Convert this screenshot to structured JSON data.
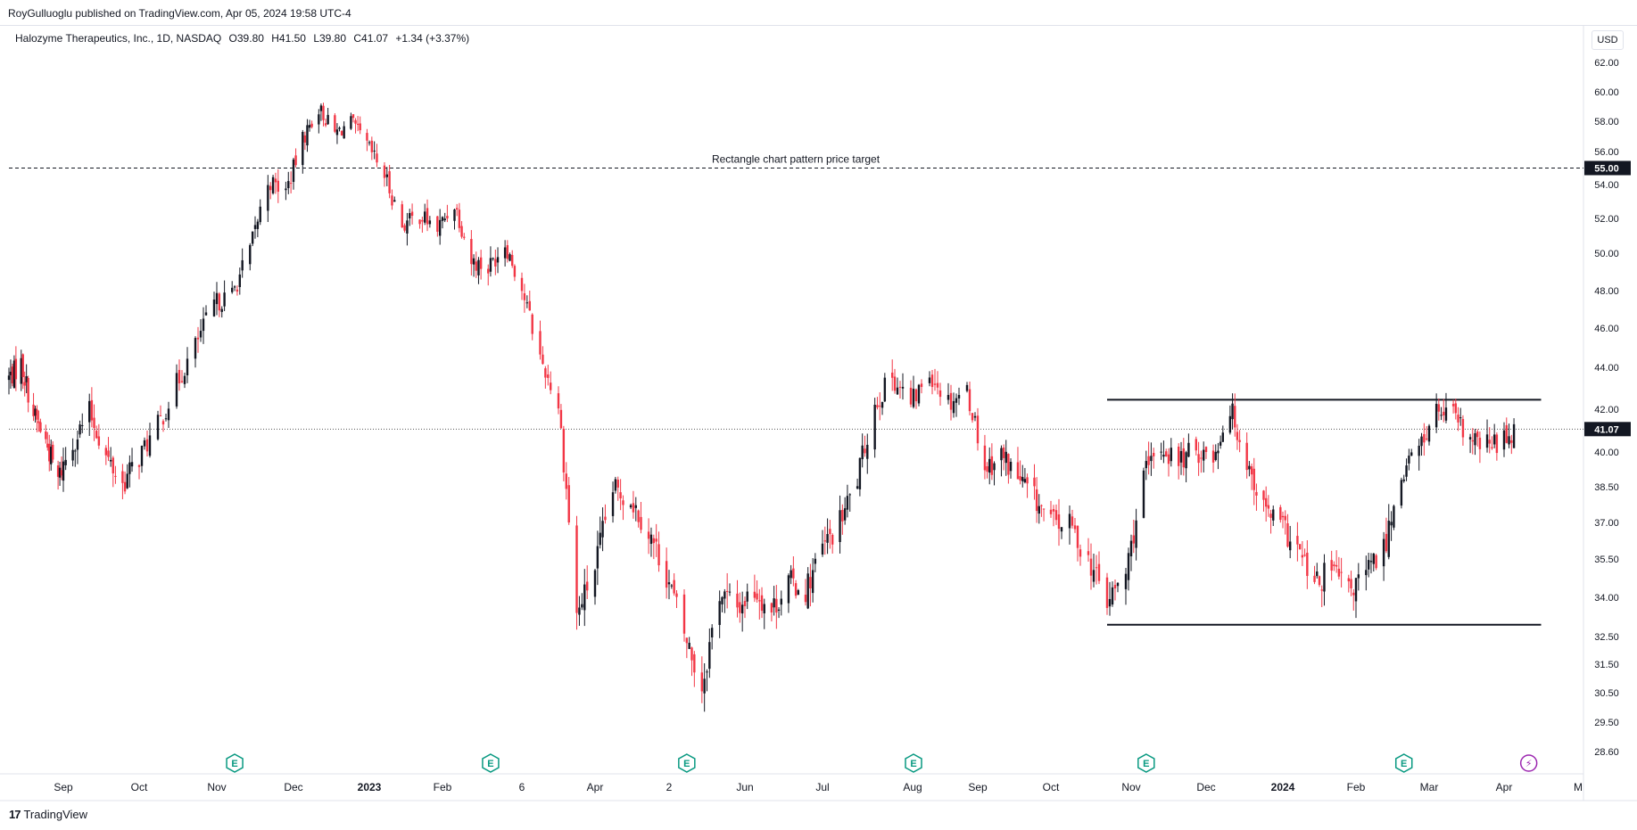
{
  "header": {
    "publisher": "RoyGulluoglu published on TradingView.com, Apr 05, 2024 19:58 UTC-4"
  },
  "legend": {
    "symbol": "Halozyme Therapeutics, Inc., 1D, NASDAQ",
    "open": "O39.80",
    "high": "H41.50",
    "low": "L39.80",
    "close": "C41.07",
    "change": "+1.34 (+3.37%)"
  },
  "currency": "USD",
  "footer": {
    "brand": "TradingView",
    "logo_mark": "17"
  },
  "colors": {
    "up": "#131722",
    "down": "#f23645",
    "line": "#131722",
    "event_icon": "#089981",
    "flash_icon": "#9c27b0",
    "grid": "#e0e3eb"
  },
  "chart_data": {
    "type": "candlestick",
    "title": "",
    "xlabel": "",
    "ylabel": "",
    "ylim": [
      28.0,
      63.2
    ],
    "y_ticks": [
      "62.00",
      "60.00",
      "58.00",
      "56.00",
      "54.00",
      "52.00",
      "50.00",
      "48.00",
      "46.00",
      "44.00",
      "42.00",
      "40.00",
      "38.50",
      "37.00",
      "35.50",
      "34.00",
      "32.50",
      "31.50",
      "30.50",
      "29.50",
      "28.60"
    ],
    "x_ticks": [
      "Sep",
      "Oct",
      "Nov",
      "Dec",
      "2023",
      "Feb",
      "6",
      "Apr",
      "2",
      "Jun",
      "Jul",
      "Aug",
      "Sep",
      "Oct",
      "Nov",
      "Dec",
      "2024",
      "Feb",
      "Mar",
      "Apr",
      "M"
    ],
    "x_ticks_bold": [
      "2023",
      "2024"
    ],
    "last_price": 41.07,
    "price_labels": [
      {
        "value": 55.0,
        "text": "55.00",
        "style": "dark"
      },
      {
        "value": 41.07,
        "text": "41.07",
        "style": "dark"
      }
    ],
    "annotations": [
      {
        "type": "hline",
        "value": 55.0,
        "style": "dashed",
        "label": "Rectangle chart pattern price target",
        "date_range": [
          "2022-08-01",
          "2024-05-31"
        ]
      },
      {
        "type": "segment",
        "value": 42.45,
        "style": "solid",
        "date_range": [
          "2023-10-23",
          "2024-04-16"
        ]
      },
      {
        "type": "segment",
        "value": 32.95,
        "style": "solid",
        "date_range": [
          "2023-10-23",
          "2024-04-16"
        ]
      },
      {
        "type": "hline",
        "value": 41.07,
        "style": "dotted",
        "date_range": [
          "2022-08-01",
          "2024-05-31"
        ]
      }
    ],
    "events": [
      {
        "date": "2022-11-08",
        "type": "earnings",
        "label": "E"
      },
      {
        "date": "2023-02-21",
        "type": "earnings",
        "label": "E"
      },
      {
        "date": "2023-05-09",
        "type": "earnings",
        "label": "E"
      },
      {
        "date": "2023-08-08",
        "type": "earnings",
        "label": "E"
      },
      {
        "date": "2023-11-07",
        "type": "earnings",
        "label": "E"
      },
      {
        "date": "2024-02-20",
        "type": "earnings",
        "label": "E"
      },
      {
        "date": "2024-04-11",
        "type": "dividend-split",
        "label": "⚡"
      }
    ],
    "series": [
      {
        "name": "",
        "points": [
          [
            "2022-08-01",
            43.5
          ],
          [
            "2022-08-08",
            44.2
          ],
          [
            "2022-08-15",
            41.8
          ],
          [
            "2022-08-22",
            40.5
          ],
          [
            "2022-08-29",
            38.8
          ],
          [
            "2022-09-05",
            40.4
          ],
          [
            "2022-09-12",
            41.9
          ],
          [
            "2022-09-19",
            39.8
          ],
          [
            "2022-09-26",
            38.6
          ],
          [
            "2022-10-03",
            39.8
          ],
          [
            "2022-10-10",
            41.2
          ],
          [
            "2022-10-17",
            43.2
          ],
          [
            "2022-10-24",
            45.1
          ],
          [
            "2022-10-31",
            47.3
          ],
          [
            "2022-11-07",
            47.8
          ],
          [
            "2022-11-14",
            50.2
          ],
          [
            "2022-11-21",
            54.2
          ],
          [
            "2022-11-28",
            53.6
          ],
          [
            "2022-12-05",
            56.8
          ],
          [
            "2022-12-12",
            58.9
          ],
          [
            "2022-12-19",
            57.2
          ],
          [
            "2022-12-26",
            57.9
          ],
          [
            "2023-01-02",
            56.4
          ],
          [
            "2023-01-09",
            54.6
          ],
          [
            "2023-01-16",
            51.6
          ],
          [
            "2023-01-23",
            52.2
          ],
          [
            "2023-01-30",
            51.4
          ],
          [
            "2023-02-06",
            52.9
          ],
          [
            "2023-02-13",
            49.6
          ],
          [
            "2023-02-20",
            49.2
          ],
          [
            "2023-02-27",
            50.6
          ],
          [
            "2023-03-06",
            48.1
          ],
          [
            "2023-03-13",
            44.5
          ],
          [
            "2023-03-20",
            42.2
          ],
          [
            "2023-03-27",
            33.3
          ],
          [
            "2023-04-03",
            35.2
          ],
          [
            "2023-04-10",
            38.4
          ],
          [
            "2023-04-17",
            38.0
          ],
          [
            "2023-04-24",
            36.6
          ],
          [
            "2023-05-01",
            34.9
          ],
          [
            "2023-05-08",
            32.6
          ],
          [
            "2023-05-15",
            30.7
          ],
          [
            "2023-05-22",
            34.2
          ],
          [
            "2023-05-29",
            33.6
          ],
          [
            "2023-06-05",
            34.3
          ],
          [
            "2023-06-12",
            33.5
          ],
          [
            "2023-06-19",
            34.6
          ],
          [
            "2023-06-26",
            34.3
          ],
          [
            "2023-07-03",
            35.9
          ],
          [
            "2023-07-10",
            37.0
          ],
          [
            "2023-07-17",
            38.8
          ],
          [
            "2023-07-24",
            42.2
          ],
          [
            "2023-07-31",
            43.6
          ],
          [
            "2023-08-07",
            42.2
          ],
          [
            "2023-08-14",
            43.8
          ],
          [
            "2023-08-21",
            42.4
          ],
          [
            "2023-08-28",
            42.9
          ],
          [
            "2023-09-04",
            39.3
          ],
          [
            "2023-09-11",
            39.9
          ],
          [
            "2023-09-18",
            38.9
          ],
          [
            "2023-09-25",
            38.0
          ],
          [
            "2023-10-02",
            37.0
          ],
          [
            "2023-10-09",
            36.9
          ],
          [
            "2023-10-16",
            35.5
          ],
          [
            "2023-10-23",
            33.8
          ],
          [
            "2023-10-30",
            34.9
          ],
          [
            "2023-11-06",
            38.9
          ],
          [
            "2023-11-13",
            40.2
          ],
          [
            "2023-11-20",
            39.6
          ],
          [
            "2023-11-27",
            40.1
          ],
          [
            "2023-12-04",
            39.8
          ],
          [
            "2023-12-11",
            42.1
          ],
          [
            "2023-12-18",
            39.6
          ],
          [
            "2023-12-25",
            37.6
          ],
          [
            "2024-01-01",
            36.9
          ],
          [
            "2024-01-08",
            35.9
          ],
          [
            "2024-01-15",
            34.4
          ],
          [
            "2024-01-22",
            35.1
          ],
          [
            "2024-01-29",
            34.2
          ],
          [
            "2024-02-05",
            34.9
          ],
          [
            "2024-02-12",
            35.9
          ],
          [
            "2024-02-19",
            39.1
          ],
          [
            "2024-02-26",
            40.2
          ],
          [
            "2024-03-04",
            41.9
          ],
          [
            "2024-03-11",
            41.6
          ],
          [
            "2024-03-18",
            40.5
          ],
          [
            "2024-03-25",
            40.3
          ],
          [
            "2024-04-01",
            40.6
          ],
          [
            "2024-04-05",
            41.07
          ]
        ]
      }
    ]
  }
}
